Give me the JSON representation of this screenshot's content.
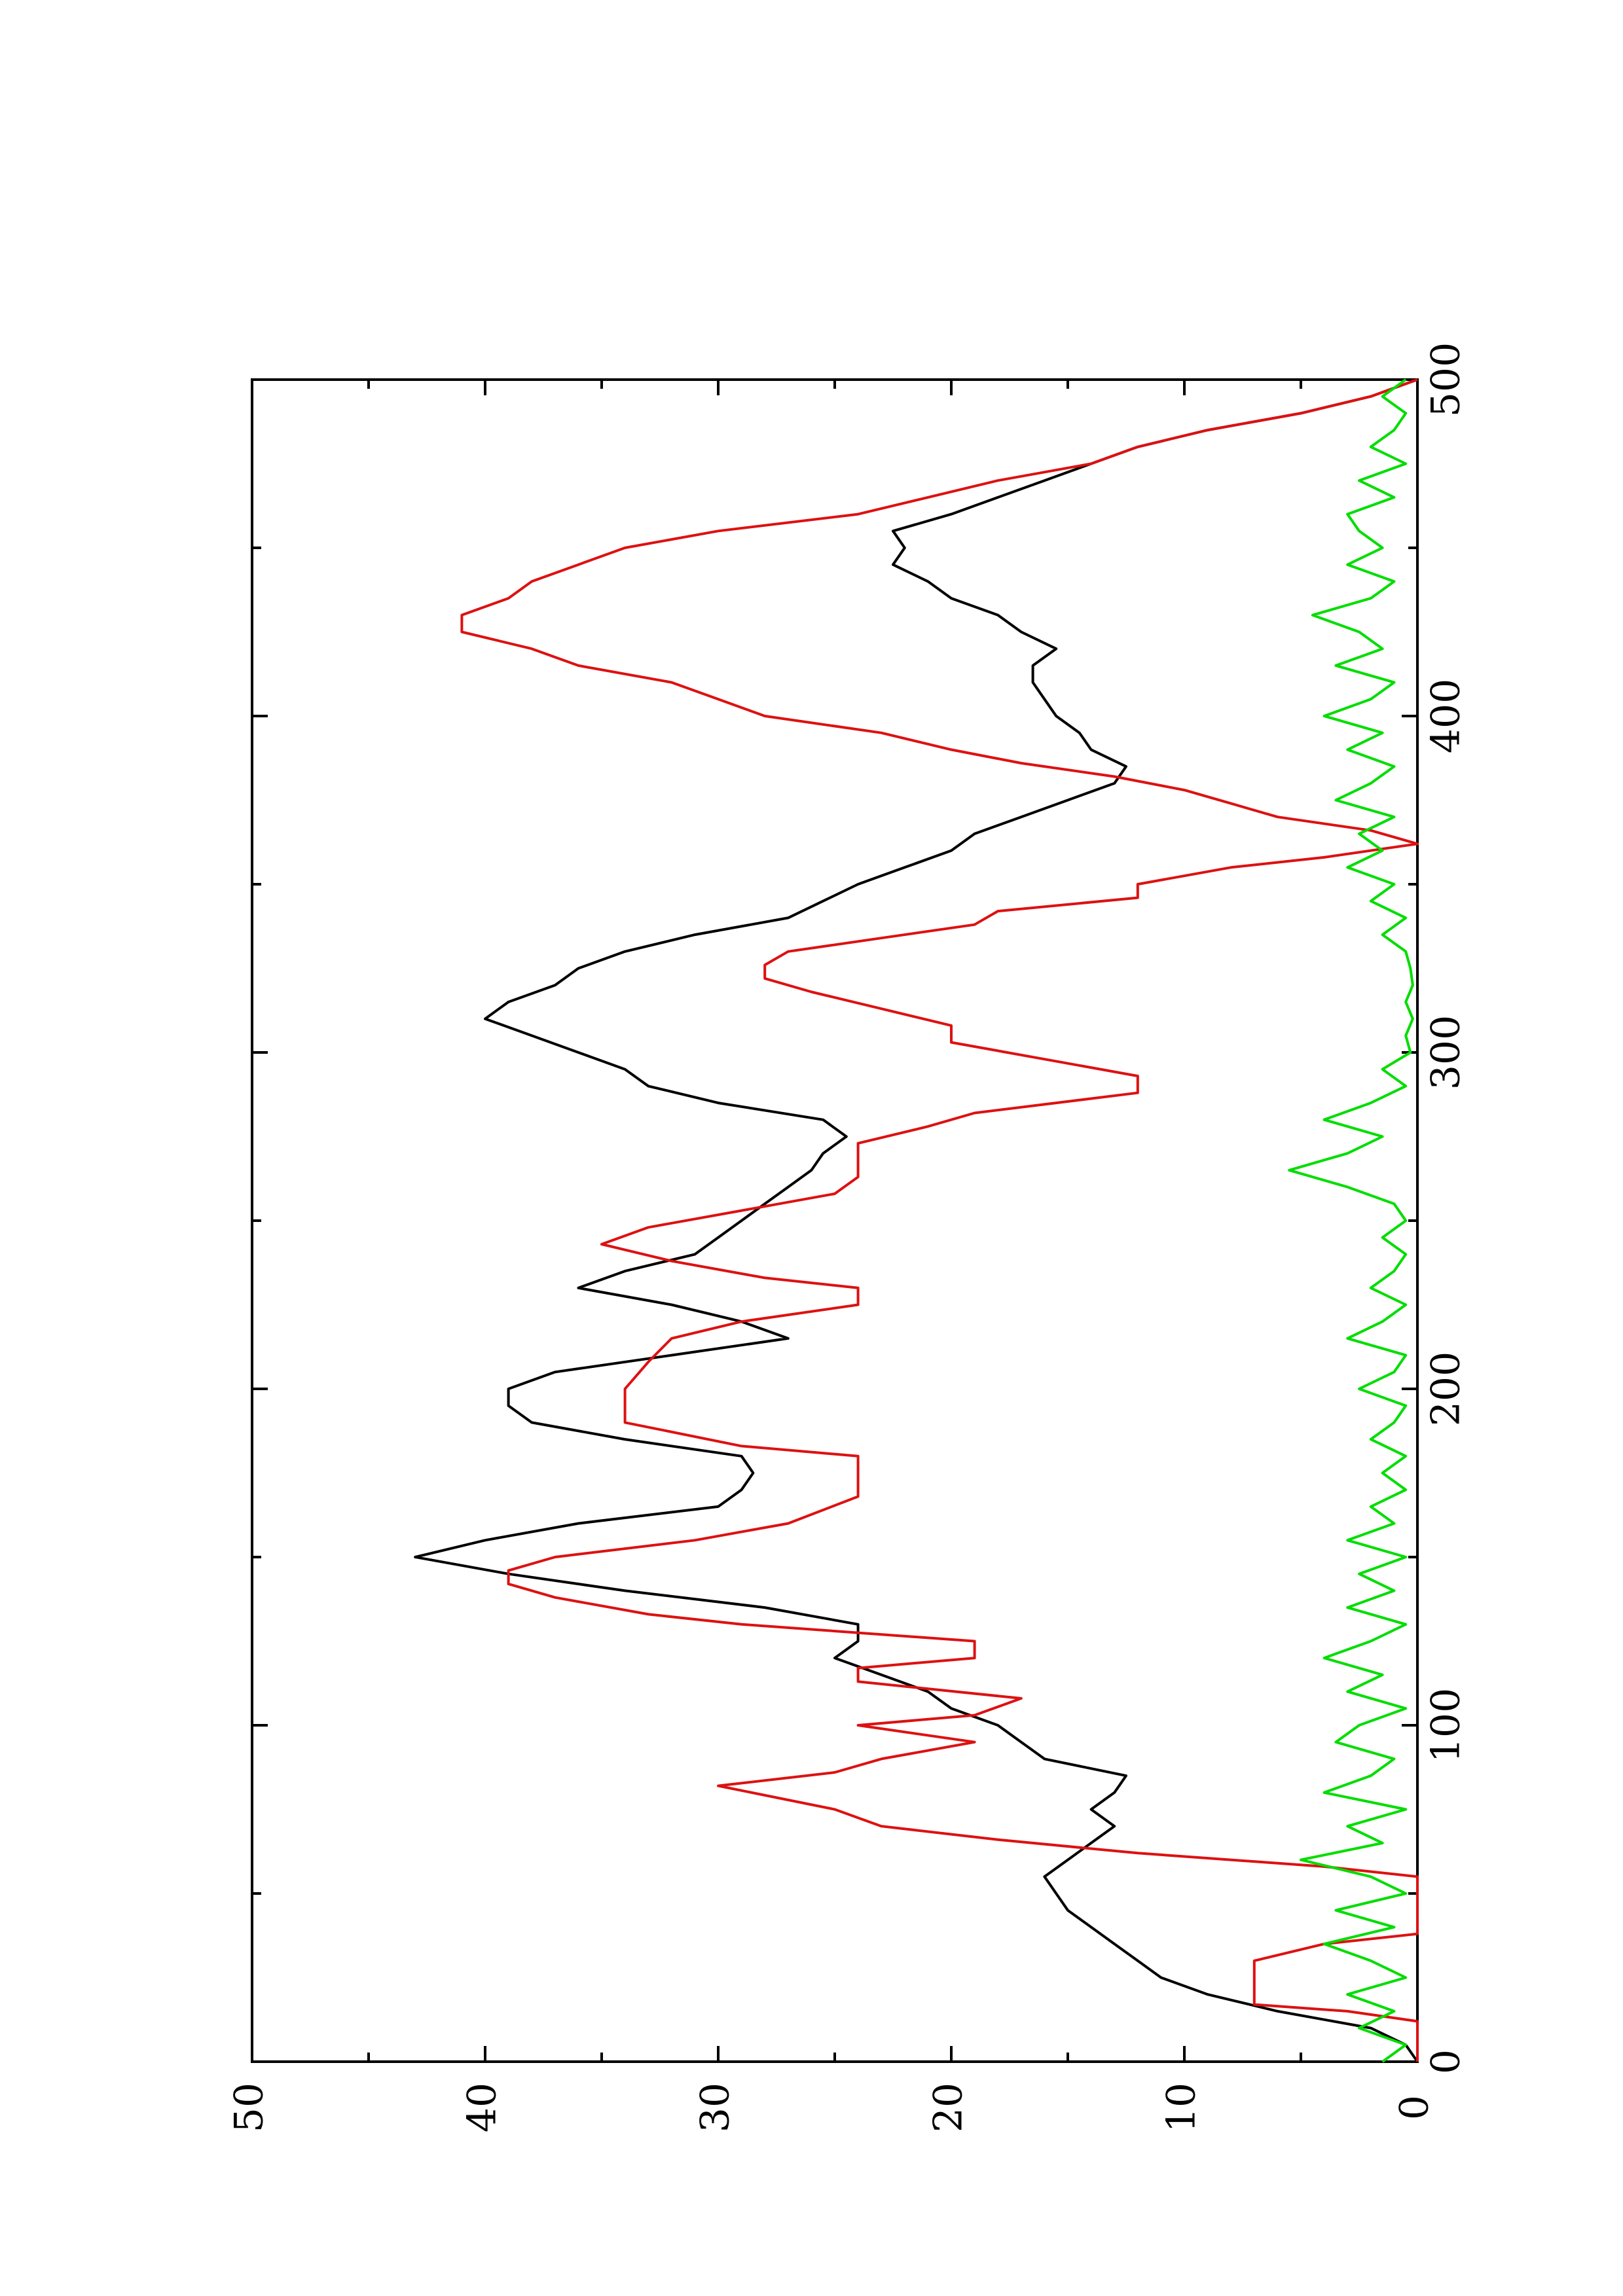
{
  "chart_data": {
    "type": "line",
    "orientation": "rotated-90-ccw",
    "title": "",
    "xlabel": "",
    "ylabel": "",
    "xlim": [
      0,
      500
    ],
    "ylim": [
      0,
      50
    ],
    "x_ticks": [
      0,
      100,
      200,
      300,
      400,
      500
    ],
    "y_ticks": [
      0,
      10,
      20,
      30,
      40,
      50
    ],
    "x_tick_labels": [
      "0",
      "100",
      "200",
      "300",
      "400",
      "500"
    ],
    "y_tick_labels": [
      "0",
      "10",
      "20",
      "30",
      "40",
      "50"
    ],
    "grid": false,
    "legend": "none",
    "series": [
      {
        "color": "#000000",
        "style": "line",
        "x": [
          0,
          5,
          10,
          15,
          20,
          25,
          30,
          35,
          40,
          45,
          50,
          55,
          60,
          65,
          70,
          75,
          80,
          85,
          90,
          95,
          100,
          105,
          110,
          115,
          120,
          125,
          130,
          135,
          140,
          145,
          150,
          155,
          160,
          165,
          170,
          175,
          180,
          185,
          190,
          195,
          200,
          205,
          210,
          215,
          220,
          225,
          230,
          235,
          240,
          245,
          250,
          255,
          260,
          265,
          270,
          275,
          280,
          285,
          290,
          295,
          300,
          305,
          310,
          315,
          320,
          325,
          330,
          335,
          340,
          345,
          350,
          355,
          360,
          365,
          370,
          375,
          380,
          385,
          390,
          395,
          400,
          405,
          410,
          415,
          420,
          425,
          430,
          435,
          440,
          445,
          450,
          455,
          460,
          465,
          470,
          475,
          480,
          485,
          490,
          495,
          500
        ],
        "y": [
          0,
          0.5,
          2,
          6,
          9,
          11,
          12,
          13,
          14,
          15,
          15.5,
          16,
          15,
          14,
          13,
          14,
          13,
          12.5,
          16,
          17,
          18,
          20,
          21,
          23,
          25,
          24,
          24,
          28,
          34,
          39,
          43,
          40,
          36,
          30,
          29,
          28.5,
          29,
          34,
          38,
          39,
          39,
          37,
          32,
          27,
          29,
          32,
          36,
          34,
          31,
          30,
          29,
          28,
          27,
          26,
          25.5,
          24.5,
          25.5,
          30,
          33,
          34,
          36,
          38,
          40,
          39,
          37,
          36,
          34,
          31,
          27,
          25.5,
          24,
          22,
          20,
          19,
          17,
          15,
          13,
          12.5,
          14,
          14.5,
          15.5,
          16,
          16.5,
          16.5,
          15.5,
          17,
          18,
          20,
          21,
          22.5,
          22,
          22.5,
          20,
          18,
          16,
          14,
          12,
          9,
          5,
          2,
          0
        ]
      },
      {
        "color": "#dd1111",
        "style": "line",
        "x": [
          0,
          12,
          15,
          17,
          22,
          27,
          30,
          35,
          38,
          41,
          50,
          55,
          58,
          62,
          66,
          70,
          75,
          82,
          86,
          90,
          95,
          100,
          103,
          108,
          113,
          117,
          120,
          125,
          130,
          133,
          138,
          142,
          146,
          150,
          155,
          160,
          168,
          175,
          180,
          183,
          190,
          195,
          200,
          208,
          215,
          220,
          225,
          230,
          233,
          238,
          243,
          248,
          253,
          258,
          263,
          268,
          273,
          278,
          282,
          288,
          293,
          298,
          303,
          308,
          313,
          318,
          322,
          326,
          330,
          334,
          338,
          342,
          346,
          350,
          355,
          358,
          362,
          366,
          370,
          374,
          378,
          382,
          386,
          390,
          395,
          400,
          405,
          410,
          415,
          420,
          425,
          430,
          435,
          440,
          445,
          450,
          455,
          460,
          465,
          470,
          475,
          480,
          485,
          490,
          495,
          500
        ],
        "y": [
          0,
          0,
          3,
          7,
          7,
          7,
          7,
          4,
          0,
          0,
          0,
          0,
          4,
          12,
          18,
          23,
          25,
          30,
          25,
          23,
          19,
          24,
          19,
          17,
          24,
          24,
          19,
          19,
          29,
          33,
          37,
          39,
          39,
          37,
          31,
          27,
          24,
          24,
          24,
          29,
          34,
          34,
          34,
          33,
          32,
          29,
          24,
          24,
          28,
          32,
          35,
          33,
          29,
          25,
          24,
          24,
          24,
          21,
          19,
          12,
          12,
          16,
          20,
          20,
          23,
          26,
          28,
          28,
          27,
          23,
          19,
          18,
          12,
          12,
          8,
          4,
          0,
          2,
          6,
          8,
          10,
          13,
          17,
          20,
          23,
          28,
          30,
          32,
          36,
          38,
          41,
          41,
          39,
          38,
          36,
          34,
          30,
          24,
          21,
          18,
          14,
          12,
          9,
          5,
          2,
          0
        ]
      },
      {
        "color": "#00dd00",
        "style": "line",
        "x": [
          0,
          5,
          10,
          15,
          20,
          25,
          30,
          35,
          40,
          45,
          50,
          55,
          60,
          65,
          70,
          75,
          80,
          85,
          90,
          95,
          100,
          105,
          110,
          115,
          120,
          125,
          130,
          135,
          140,
          145,
          150,
          155,
          160,
          165,
          170,
          175,
          180,
          185,
          190,
          195,
          200,
          205,
          210,
          215,
          220,
          225,
          230,
          235,
          240,
          245,
          250,
          255,
          260,
          265,
          270,
          275,
          280,
          285,
          290,
          295,
          300,
          305,
          310,
          315,
          320,
          325,
          330,
          335,
          340,
          345,
          350,
          355,
          360,
          365,
          370,
          375,
          380,
          385,
          390,
          395,
          400,
          405,
          410,
          415,
          420,
          425,
          430,
          435,
          440,
          445,
          450,
          455,
          460,
          465,
          470,
          475,
          480,
          485,
          490,
          495,
          500
        ],
        "y": [
          1.5,
          0.5,
          2.5,
          1,
          3,
          0.5,
          2,
          4,
          1,
          3.5,
          0.5,
          2,
          5,
          1.5,
          3,
          0.5,
          4,
          2,
          1,
          3.5,
          2.5,
          0.5,
          3,
          1.5,
          4,
          2,
          0.5,
          3,
          1,
          2.5,
          0.5,
          3,
          1,
          2,
          0.5,
          1.5,
          0.5,
          2,
          1,
          0.5,
          2.5,
          1,
          0.5,
          3,
          1.5,
          0.5,
          2,
          1,
          0.5,
          1.5,
          0.5,
          1,
          3,
          5.5,
          3,
          1.5,
          4,
          2,
          0.5,
          1.5,
          0.3,
          0.5,
          0.2,
          0.5,
          0.2,
          0.3,
          0.5,
          1.5,
          0.5,
          2,
          1,
          3,
          1.5,
          2.5,
          1,
          3.5,
          2,
          1,
          3,
          1.5,
          4,
          2,
          1,
          3.5,
          1.5,
          2.5,
          4.5,
          2,
          1,
          3,
          1.5,
          2.5,
          3,
          1,
          2.5,
          0.5,
          2,
          1,
          0.5,
          1.5,
          0.5
        ]
      }
    ]
  }
}
